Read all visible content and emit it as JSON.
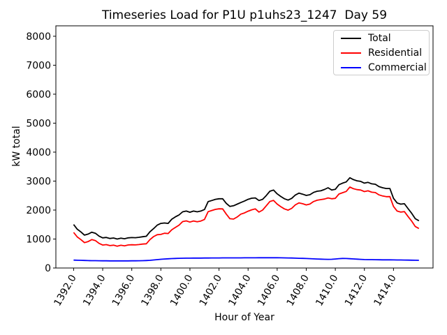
{
  "chart_data": {
    "type": "line",
    "title": "Timeseries Load for P1U p1uhs23_1247  Day 59",
    "xlabel": "Hour of Year",
    "ylabel": "kW total",
    "grid": false,
    "legend_position": "upper right",
    "xlim": [
      1390.78,
      1416.72
    ],
    "ylim": [
      0,
      8360
    ],
    "x_ticks": [
      1392,
      1394,
      1396,
      1398,
      1400,
      1402,
      1404,
      1406,
      1408,
      1410,
      1412,
      1414
    ],
    "x_tick_labels": [
      "1392.0",
      "1394.0",
      "1396.0",
      "1398.0",
      "1400.0",
      "1402.0",
      "1404.0",
      "1406.0",
      "1408.0",
      "1410.0",
      "1412.0",
      "1414.0"
    ],
    "y_ticks": [
      0,
      1000,
      2000,
      3000,
      4000,
      5000,
      6000,
      7000,
      8000
    ],
    "y_tick_labels": [
      "0",
      "1000",
      "2000",
      "3000",
      "4000",
      "5000",
      "6000",
      "7000",
      "8000"
    ],
    "x": [
      1392.0,
      1392.25,
      1392.5,
      1392.75,
      1393.0,
      1393.25,
      1393.5,
      1393.75,
      1394.0,
      1394.25,
      1394.5,
      1394.75,
      1395.0,
      1395.25,
      1395.5,
      1395.75,
      1396.0,
      1396.25,
      1396.5,
      1396.75,
      1397.0,
      1397.25,
      1397.5,
      1397.75,
      1398.0,
      1398.25,
      1398.5,
      1398.75,
      1399.0,
      1399.25,
      1399.5,
      1399.75,
      1400.0,
      1400.25,
      1400.5,
      1400.75,
      1401.0,
      1401.25,
      1401.5,
      1401.75,
      1402.0,
      1402.25,
      1402.5,
      1402.75,
      1403.0,
      1403.25,
      1403.5,
      1403.75,
      1404.0,
      1404.25,
      1404.5,
      1404.75,
      1405.0,
      1405.25,
      1405.5,
      1405.75,
      1406.0,
      1406.25,
      1406.5,
      1406.75,
      1407.0,
      1407.25,
      1407.5,
      1407.75,
      1408.0,
      1408.25,
      1408.5,
      1408.75,
      1409.0,
      1409.25,
      1409.5,
      1409.75,
      1410.0,
      1410.25,
      1410.5,
      1410.75,
      1411.0,
      1411.25,
      1411.5,
      1411.75,
      1412.0,
      1412.25,
      1412.5,
      1412.75,
      1413.0,
      1413.25,
      1413.5,
      1413.75,
      1414.0,
      1414.25,
      1414.5,
      1414.75,
      1415.0,
      1415.25,
      1415.5,
      1415.75
    ],
    "series": [
      {
        "name": "Total",
        "color": "#000000",
        "values": [
          1500,
          1340,
          1245,
          1135,
          1170,
          1235,
          1200,
          1100,
          1040,
          1055,
          1020,
          1035,
          1000,
          1030,
          1010,
          1040,
          1050,
          1045,
          1060,
          1080,
          1095,
          1250,
          1360,
          1480,
          1540,
          1555,
          1540,
          1685,
          1765,
          1830,
          1940,
          1965,
          1925,
          1965,
          1940,
          1965,
          2020,
          2290,
          2330,
          2370,
          2390,
          2390,
          2230,
          2125,
          2150,
          2205,
          2260,
          2310,
          2370,
          2410,
          2420,
          2330,
          2370,
          2500,
          2650,
          2690,
          2560,
          2470,
          2390,
          2345,
          2405,
          2520,
          2585,
          2550,
          2505,
          2530,
          2610,
          2650,
          2665,
          2710,
          2770,
          2690,
          2715,
          2875,
          2930,
          2970,
          3115,
          3050,
          3010,
          2990,
          2930,
          2955,
          2905,
          2890,
          2810,
          2770,
          2745,
          2745,
          2405,
          2245,
          2205,
          2220,
          2050,
          1890,
          1700,
          1630
        ]
      },
      {
        "name": "Residential",
        "color": "#ff0000",
        "values": [
          1228,
          1072,
          981,
          875,
          914,
          981,
          948,
          850,
          792,
          808,
          774,
          789,
          755,
          785,
          764,
          794,
          803,
          797,
          810,
          826,
          837,
          980,
          1085,
          1150,
          1160,
          1200,
          1190,
          1320,
          1400,
          1480,
          1603,
          1626,
          1585,
          1624,
          1598,
          1622,
          1676,
          1945,
          1984,
          2023,
          2042,
          2041,
          1860,
          1700,
          1690,
          1760,
          1860,
          1900,
          1960,
          2010,
          2040,
          1930,
          2000,
          2146,
          2295,
          2335,
          2206,
          2118,
          2040,
          1997,
          2060,
          2180,
          2249,
          2218,
          2177,
          2208,
          2294,
          2340,
          2360,
          2380,
          2420,
          2390,
          2405,
          2553,
          2600,
          2642,
          2795,
          2738,
          2705,
          2692,
          2638,
          2665,
          2617,
          2604,
          2526,
          2487,
          2463,
          2464,
          2125,
          1967,
          1929,
          1946,
          1778,
          1620,
          1432,
          1364
        ]
      },
      {
        "name": "Commercial",
        "color": "#0000ff",
        "values": [
          272,
          268,
          264,
          260,
          256,
          254,
          252,
          250,
          248,
          247,
          246,
          246,
          245,
          245,
          246,
          246,
          247,
          248,
          250,
          254,
          258,
          266,
          276,
          288,
          300,
          310,
          318,
          325,
          330,
          334,
          337,
          339,
          340,
          341,
          342,
          343,
          344,
          345,
          346,
          347,
          348,
          349,
          350,
          350,
          350,
          350,
          350,
          351,
          351,
          352,
          352,
          353,
          353,
          354,
          355,
          355,
          354,
          352,
          350,
          348,
          345,
          340,
          336,
          332,
          328,
          322,
          316,
          310,
          305,
          300,
          298,
          300,
          310,
          322,
          330,
          328,
          320,
          312,
          305,
          298,
          292,
          290,
          288,
          286,
          284,
          283,
          282,
          281,
          280,
          278,
          276,
          274,
          272,
          270,
          268,
          266
        ]
      }
    ]
  }
}
